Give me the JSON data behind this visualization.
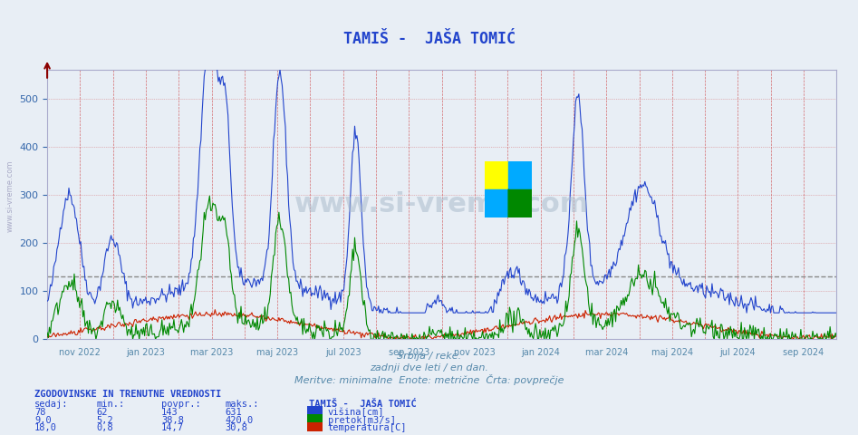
{
  "title": "TAMIŠ -  JAŠA TOMIĆ",
  "background_color": "#e8eef5",
  "plot_bg_color": "#e8eef5",
  "ylabel_color": "#3366aa",
  "line_colors": [
    "#2244cc",
    "#008800",
    "#cc2200"
  ],
  "avg_line_value": 130,
  "ylim": [
    0,
    560
  ],
  "yticks": [
    0,
    100,
    200,
    300,
    400,
    500
  ],
  "xlabel_dates": [
    "nov 2022",
    "jan 2023",
    "mar 2023",
    "maj 2023",
    "jul 2023",
    "sep 2023",
    "nov 2023",
    "jan 2024",
    "mar 2024",
    "maj 2024",
    "jul 2024",
    "sep 2024"
  ],
  "watermark_text": "www.si-vreme.com",
  "subtitle1": "Srbija / reke.",
  "subtitle2": "zadnji dve leti / en dan.",
  "subtitle3": "Meritve: minimalne  Enote: metrične  Črta: povprečje",
  "legend_title": "TAMIŠ -  JAŠA TOMIĆ",
  "legend_items": [
    "višina[cm]",
    "pretok[m3/s]",
    "temperatura[C]"
  ],
  "stats_header": "ZGODOVINSKE IN TRENUTNE VREDNOSTI",
  "stats_cols": [
    "sedaj:",
    "min.:",
    "povpr.:",
    "maks.:"
  ],
  "stats_rows": [
    [
      "78",
      "62",
      "143",
      "631"
    ],
    [
      "9,0",
      "5,2",
      "38,8",
      "420,0"
    ],
    [
      "18,0",
      "0,8",
      "14,7",
      "30,8"
    ]
  ],
  "n_points": 730,
  "title_color": "#2244cc",
  "stats_color": "#2244cc",
  "text_color": "#5588aa"
}
